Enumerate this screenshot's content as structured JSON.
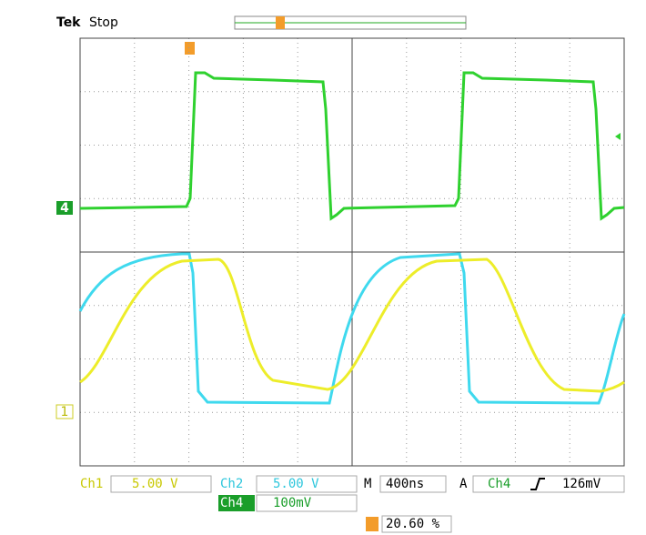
{
  "header": {
    "brand": "Tek",
    "status": "Stop"
  },
  "markers": {
    "ch4": "4",
    "ch1": "1"
  },
  "readouts": {
    "ch1_label": "Ch1",
    "ch1_scale": "5.00 V",
    "ch2_label": "Ch2",
    "ch2_scale": "5.00 V",
    "time_label": "M",
    "time_scale": "400ns",
    "trigger_label": "A",
    "trigger_source": "Ch4",
    "trigger_level": "126mV",
    "ch4_label": "Ch4",
    "ch4_scale": "100mV",
    "measurement": "20.60 %"
  }
}
